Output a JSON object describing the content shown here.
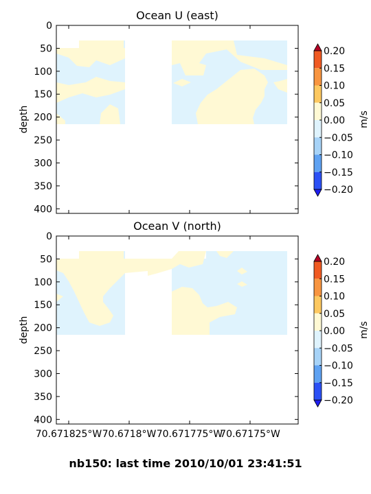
{
  "footer": "nb150: last time 2010/10/01 23:41:51",
  "colors": {
    "positive_light": "#fff9d4",
    "negative_light": "#dff3fd",
    "frame": "#000000"
  },
  "chart_data": [
    {
      "type": "contour",
      "title": "Ocean U (east)",
      "ylabel": "depth",
      "y_ticks": [
        "0",
        "50",
        "100",
        "150",
        "200",
        "250",
        "300",
        "350",
        "400"
      ],
      "ylim": [
        410,
        0
      ],
      "x_ticks": [],
      "colorbar": {
        "label": "m/s",
        "ticks": [
          "0.20",
          "0.15",
          "0.10",
          "0.05",
          "0.00",
          "−0.05",
          "−0.10",
          "−0.15",
          "−0.20"
        ],
        "levels": [
          0.2,
          0.15,
          0.1,
          0.05,
          0.0,
          -0.05,
          -0.1,
          -0.15,
          -0.2
        ],
        "colors": [
          "#f05a22",
          "#f89540",
          "#fdc860",
          "#fff9d4",
          "#dff3fd",
          "#a7d3f7",
          "#5fa2f2",
          "#2b50f5"
        ],
        "extend": "both"
      },
      "data_depth_range": [
        35,
        215
      ],
      "shown_value_bands": [
        "0.00 to 0.05",
        "-0.05 to 0.00"
      ]
    },
    {
      "type": "contour",
      "title": "Ocean V (north)",
      "ylabel": "depth",
      "y_ticks": [
        "0",
        "50",
        "100",
        "150",
        "200",
        "250",
        "300",
        "350",
        "400"
      ],
      "ylim": [
        410,
        0
      ],
      "x_ticks": [
        "70.671825°W",
        "70.6718°W",
        "70.671775°W",
        "70.67175°W"
      ],
      "colorbar": {
        "label": "m/s",
        "ticks": [
          "0.20",
          "0.15",
          "0.10",
          "0.05",
          "0.00",
          "−0.05",
          "−0.10",
          "−0.15",
          "−0.20"
        ],
        "levels": [
          0.2,
          0.15,
          0.1,
          0.05,
          0.0,
          -0.05,
          -0.1,
          -0.15,
          -0.2
        ],
        "colors": [
          "#f05a22",
          "#f89540",
          "#fdc860",
          "#fff9d4",
          "#dff3fd",
          "#a7d3f7",
          "#5fa2f2",
          "#2b50f5"
        ],
        "extend": "both"
      },
      "data_depth_range": [
        35,
        215
      ],
      "shown_value_bands": [
        "0.00 to 0.05",
        "-0.05 to 0.00"
      ]
    }
  ]
}
